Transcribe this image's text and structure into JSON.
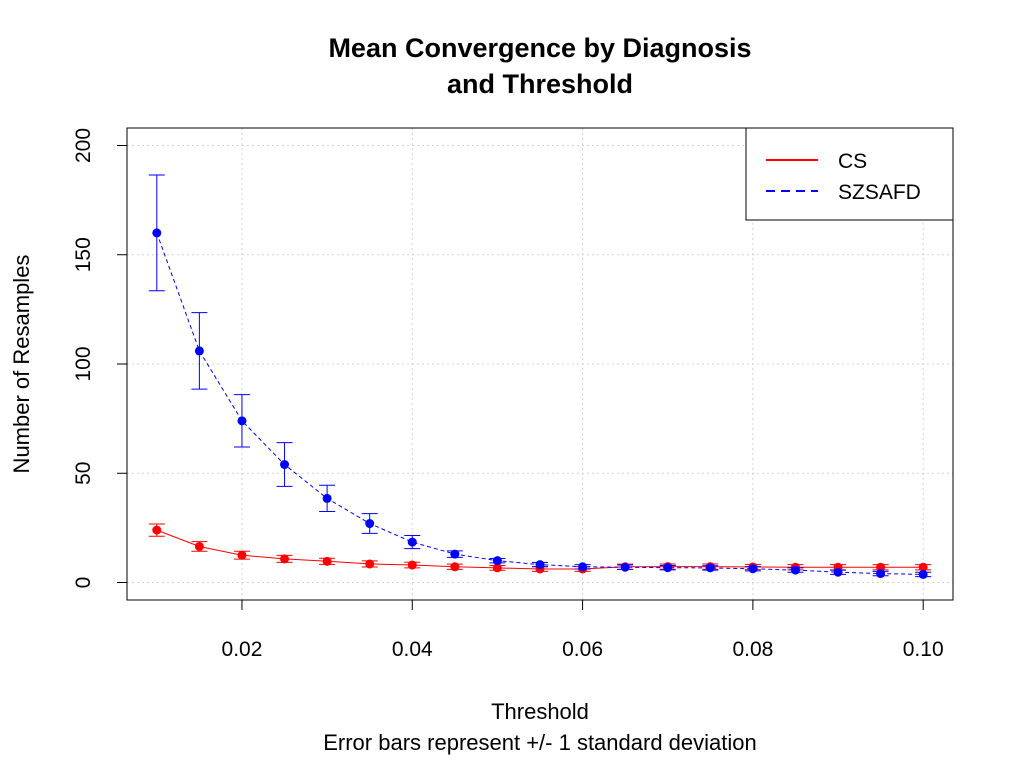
{
  "chart_data": {
    "type": "line",
    "title_line1": "Mean Convergence by Diagnosis",
    "title_line2": "and Threshold",
    "xlabel": "Threshold",
    "subtitle": "Error bars represent +/- 1 standard deviation",
    "ylabel": "Number of Resamples",
    "xlim": [
      0.0065,
      0.1035
    ],
    "ylim": [
      -8,
      208
    ],
    "x_ticks": [
      0.02,
      0.04,
      0.06,
      0.08,
      0.1
    ],
    "x_tick_labels": [
      "0.02",
      "0.04",
      "0.06",
      "0.08",
      "0.10"
    ],
    "y_ticks": [
      0,
      50,
      100,
      150,
      200
    ],
    "y_tick_labels": [
      "0",
      "50",
      "100",
      "150",
      "200"
    ],
    "grid": true,
    "legend_position": "top-right",
    "x": [
      0.01,
      0.015,
      0.02,
      0.025,
      0.03,
      0.035,
      0.04,
      0.045,
      0.05,
      0.055,
      0.06,
      0.065,
      0.07,
      0.075,
      0.08,
      0.085,
      0.09,
      0.095,
      0.1
    ],
    "series": [
      {
        "name": "CS",
        "color": "#ff0000",
        "line_style": "solid",
        "values": [
          24,
          16.5,
          12.5,
          10.8,
          9.7,
          8.5,
          8.0,
          7.2,
          6.7,
          6.2,
          6.2,
          7.2,
          7.3,
          7.3,
          7.1,
          7.0,
          7.0,
          7.0,
          7.0
        ],
        "sd": [
          2.8,
          2.2,
          1.8,
          1.6,
          1.4,
          1.4,
          1.3,
          1.2,
          1.1,
          1.1,
          1.1,
          1.2,
          1.2,
          1.2,
          1.2,
          1.2,
          1.2,
          1.2,
          1.2
        ]
      },
      {
        "name": "SZSAFD",
        "color": "#0000ff",
        "line_style": "dashed",
        "values": [
          160,
          106,
          74,
          54,
          38.5,
          27,
          18.5,
          13,
          10,
          8.2,
          7.2,
          7.0,
          6.8,
          6.7,
          6.3,
          5.7,
          4.7,
          4.1,
          3.7
        ],
        "sd": [
          26.5,
          17.5,
          12,
          10,
          6,
          4.5,
          3,
          1.5,
          1,
          1,
          1,
          1,
          1,
          1,
          1,
          1,
          1,
          1,
          1
        ]
      }
    ]
  }
}
